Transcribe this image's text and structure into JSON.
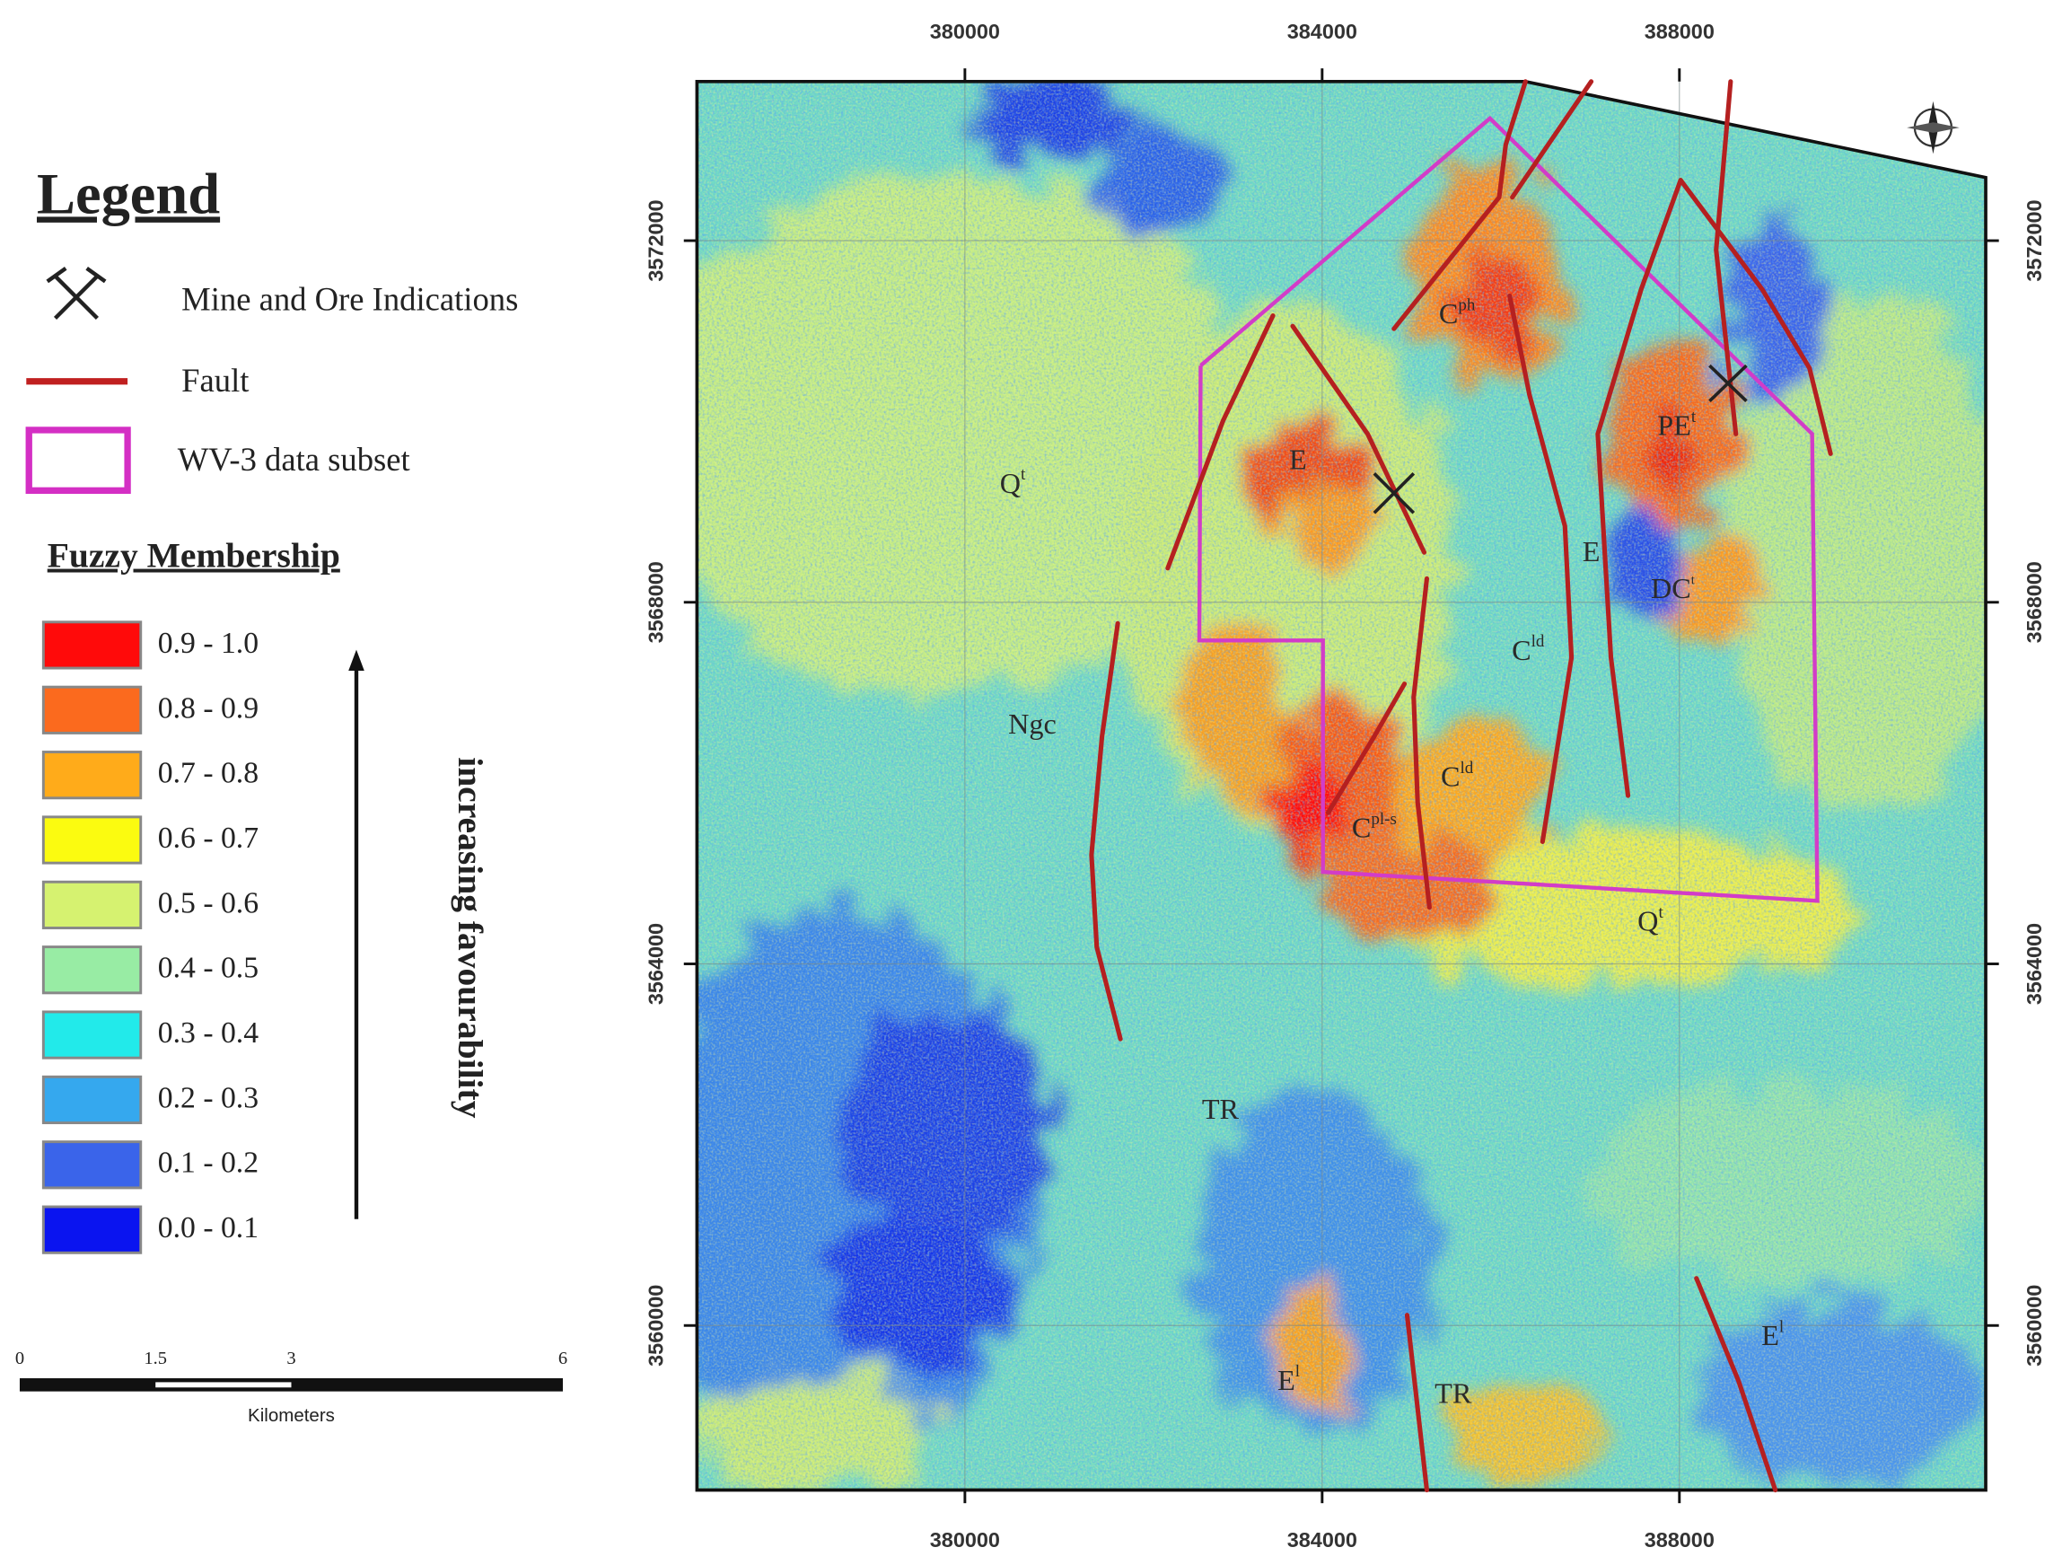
{
  "legend": {
    "title": "Legend",
    "mine": "Mine and Ore Indications",
    "fault": "Fault",
    "subset": "WV-3 data subset"
  },
  "fuzzy_membership": {
    "title": "Fuzzy Membership",
    "classes": [
      {
        "label": "0.9 - 1.0",
        "color": "#ff0a0a"
      },
      {
        "label": "0.8 - 0.9",
        "color": "#fb6a1e"
      },
      {
        "label": "0.7 - 0.8",
        "color": "#ffab1a"
      },
      {
        "label": "0.6 - 0.7",
        "color": "#fbfb10"
      },
      {
        "label": "0.5 - 0.6",
        "color": "#d6f270"
      },
      {
        "label": "0.4 - 0.5",
        "color": "#98eca4"
      },
      {
        "label": "0.3 - 0.4",
        "color": "#22eaea"
      },
      {
        "label": "0.2 - 0.3",
        "color": "#35a8ee"
      },
      {
        "label": "0.1 - 0.2",
        "color": "#3a64ea"
      },
      {
        "label": "0.0 - 0.1",
        "color": "#0a14f0"
      }
    ],
    "arrow_label": "increasing favourability"
  },
  "scale_bar": {
    "ticks": [
      0,
      1.5,
      3,
      6
    ],
    "unit": "Kilometers"
  },
  "map": {
    "xlim": [
      377000,
      391430
    ],
    "ylim": [
      3558180,
      3573760
    ],
    "xticks": [
      380000,
      384000,
      388000
    ],
    "yticks": [
      3572000,
      3568000,
      3564000,
      3560000
    ],
    "labels": [
      {
        "text": "Q",
        "sup": "t"
      },
      {
        "text": "Ngc"
      },
      {
        "text": "TR"
      },
      {
        "text": "E"
      },
      {
        "text": "C",
        "sup": "ph"
      },
      {
        "text": "E"
      },
      {
        "text": "PE",
        "sup": "t"
      },
      {
        "text": "DC",
        "sup": "t"
      },
      {
        "text": "C",
        "sup": "ld"
      },
      {
        "text": "C",
        "sup": "ld"
      },
      {
        "text": "C",
        "sup": "pl-s"
      },
      {
        "text": "Q",
        "sup": "t"
      },
      {
        "text": "E",
        "sup": "l"
      },
      {
        "text": "TR"
      },
      {
        "text": "E",
        "sup": "l"
      }
    ]
  }
}
